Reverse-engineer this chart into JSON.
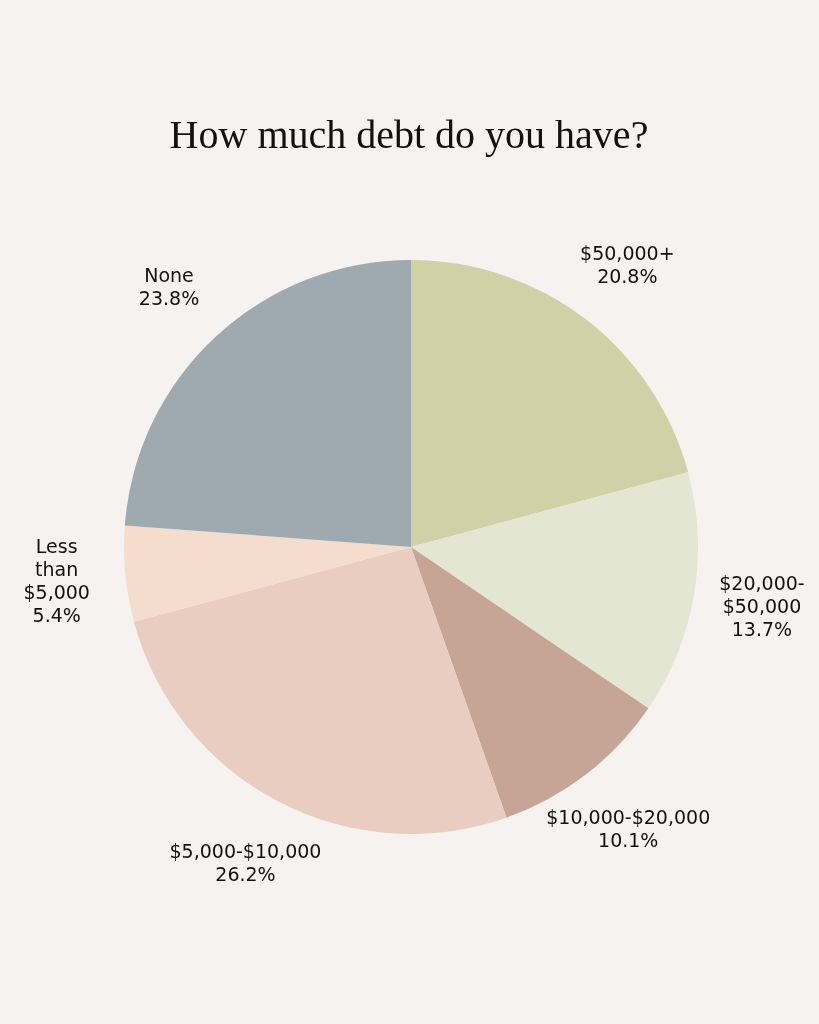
{
  "chart_data": {
    "type": "pie",
    "title": "How much debt do you have?",
    "categories": [
      "$50,000+",
      "$20,000-$50,000",
      "$10,000-$20,000",
      "$5,000-$10,000",
      "Less than $5,000",
      "None"
    ],
    "values": [
      20.8,
      13.7,
      10.1,
      26.2,
      5.4,
      23.8
    ],
    "colors": [
      "#d0d1a6",
      "#e3e6d3",
      "#c6a596",
      "#e8cdc0",
      "#f4ddcd",
      "#9eaab0"
    ],
    "value_labels": [
      "20.8%",
      "13.7%",
      "10.1%",
      "26.2%",
      "5.4%",
      "23.8%"
    ]
  }
}
